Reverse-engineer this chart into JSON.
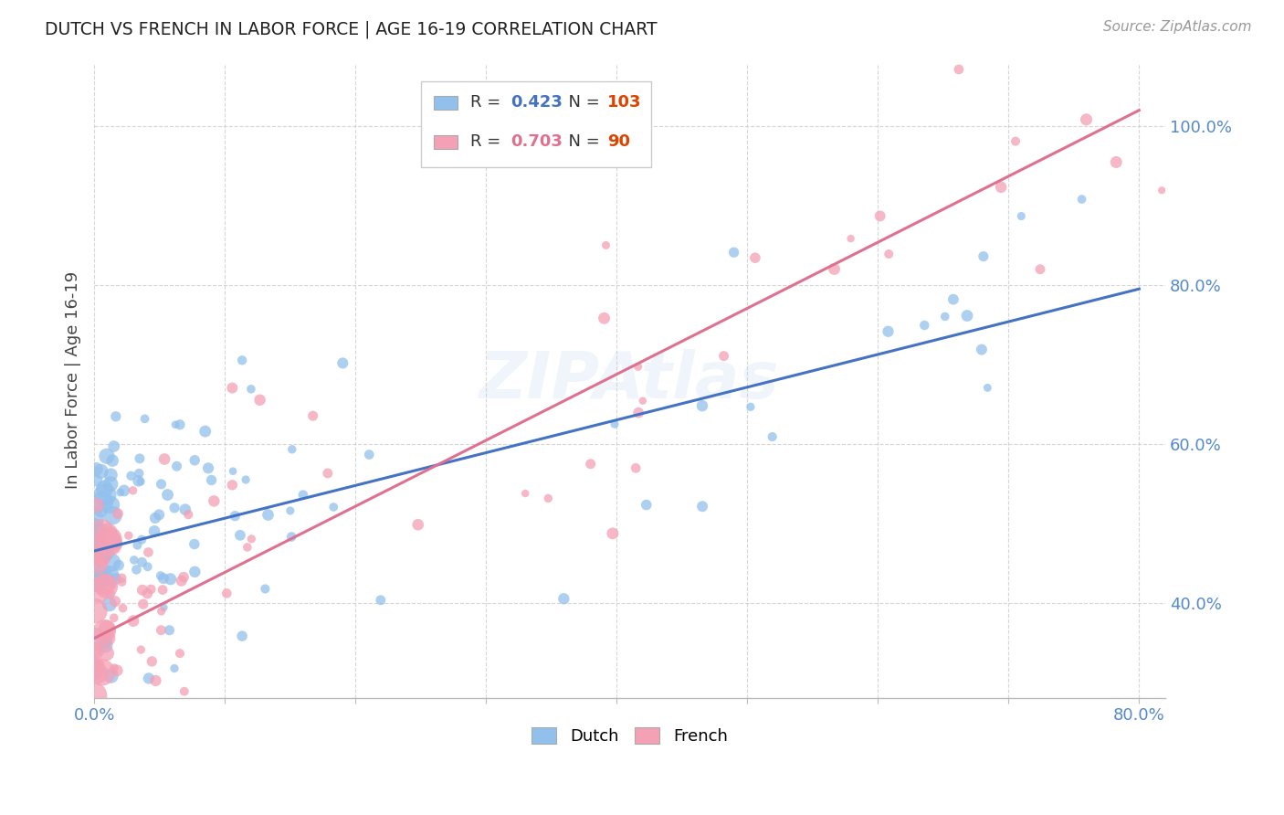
{
  "title": "DUTCH VS FRENCH IN LABOR FORCE | AGE 16-19 CORRELATION CHART",
  "source": "Source: ZipAtlas.com",
  "ylabel": "In Labor Force | Age 16-19",
  "xlim": [
    0.0,
    0.82
  ],
  "ylim": [
    0.28,
    1.08
  ],
  "yticks": [
    0.4,
    0.6,
    0.8,
    1.0
  ],
  "ytick_labels": [
    "40.0%",
    "60.0%",
    "80.0%",
    "100.0%"
  ],
  "xticks": [
    0.0,
    0.1,
    0.2,
    0.3,
    0.4,
    0.5,
    0.6,
    0.7,
    0.8
  ],
  "xtick_labels": [
    "0.0%",
    "",
    "",
    "",
    "",
    "",
    "",
    "",
    "80.0%"
  ],
  "dutch_R": 0.423,
  "dutch_N": 103,
  "french_R": 0.703,
  "french_N": 90,
  "dutch_color": "#92C0EC",
  "french_color": "#F4A0B5",
  "dutch_line_color": "#4472C4",
  "french_line_color": "#E07090",
  "axis_color": "#5588CC",
  "tick_color": "#5588CC",
  "watermark": "ZIPAtlas",
  "background_color": "#FFFFFF",
  "dutch_line_x0": 0.0,
  "dutch_line_x1": 0.8,
  "dutch_line_y0": 0.465,
  "dutch_line_y1": 0.795,
  "french_line_x0": 0.0,
  "french_line_x1": 0.8,
  "french_line_y0": 0.355,
  "french_line_y1": 1.02
}
